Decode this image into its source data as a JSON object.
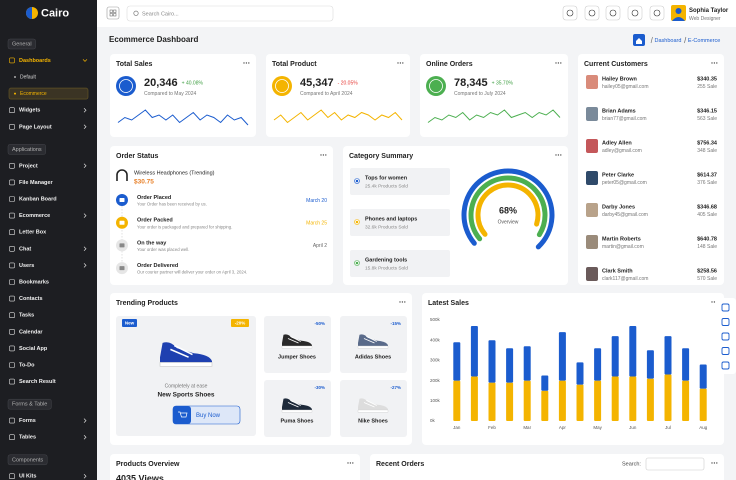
{
  "sidebar": {
    "brand": "Cairo",
    "sections": [
      {
        "title": "General",
        "items": [
          {
            "label": "Dashboards",
            "arrow": true
          },
          {
            "label": "Default",
            "sub": true
          },
          {
            "label": "Ecommerce",
            "sub": true
          },
          {
            "label": "Widgets",
            "arrow": true
          },
          {
            "label": "Page Layout",
            "arrow": true
          }
        ]
      },
      {
        "title": "Applications",
        "items": [
          {
            "label": "Project",
            "arrow": true
          },
          {
            "label": "File Manager"
          },
          {
            "label": "Kanban Board"
          },
          {
            "label": "Ecommerce",
            "arrow": true
          },
          {
            "label": "Letter Box"
          },
          {
            "label": "Chat",
            "arrow": true
          },
          {
            "label": "Users",
            "arrow": true
          },
          {
            "label": "Bookmarks"
          },
          {
            "label": "Contacts"
          },
          {
            "label": "Tasks"
          },
          {
            "label": "Calendar"
          },
          {
            "label": "Social App"
          },
          {
            "label": "To-Do"
          },
          {
            "label": "Search Result"
          }
        ]
      },
      {
        "title": "Forms & Table",
        "items": [
          {
            "label": "Forms",
            "arrow": true
          },
          {
            "label": "Tables",
            "arrow": true
          }
        ]
      },
      {
        "title": "Components",
        "items": [
          {
            "label": "UI Kits",
            "arrow": true
          }
        ]
      }
    ]
  },
  "topbar": {
    "search_placeholder": "Search Cairo...",
    "user_name": "Sophia Taylor",
    "user_role": "Web Designer"
  },
  "page": {
    "title": "Ecommerce Dashboard",
    "breadcrumb": [
      "Dashboard",
      "E-Commerce"
    ]
  },
  "stats": [
    {
      "title": "Total Sales",
      "value": "20,346",
      "change": "+ 40.08%",
      "change_color": "#43a047",
      "note": "Compared to May 2024",
      "color": "#1b5cce",
      "trend": [
        3,
        5,
        4,
        6,
        8,
        5,
        6,
        4,
        6,
        3,
        5,
        7,
        4,
        6,
        5,
        3,
        6,
        4,
        5,
        2
      ]
    },
    {
      "title": "Total Product",
      "value": "45,347",
      "change": "- 20.05%",
      "change_color": "#e53935",
      "note": "Compared to April 2024",
      "color": "#f4b400",
      "trend": [
        4,
        6,
        3,
        5,
        7,
        4,
        6,
        8,
        5,
        7,
        4,
        6,
        5,
        7,
        6,
        4,
        6,
        5,
        7,
        4
      ]
    },
    {
      "title": "Online Orders",
      "value": "78,345",
      "change": "+ 35.70%",
      "change_color": "#43a047",
      "note": "Compared to July 2024",
      "color": "#4caf50",
      "trend": [
        3,
        5,
        4,
        6,
        5,
        7,
        4,
        6,
        5,
        7,
        6,
        8,
        5,
        6,
        7,
        5,
        7,
        6,
        8,
        5
      ]
    }
  ],
  "customers": {
    "title": "Current Customers",
    "rows": [
      {
        "name": "Hailey Brown",
        "email": "hailey05@gmail.com",
        "amount": "$340.35",
        "sales": "255 Sale"
      },
      {
        "name": "Brian Adams",
        "email": "brian77@gmail.com",
        "amount": "$346.15",
        "sales": "563 Sale"
      },
      {
        "name": "Adley Allen",
        "email": "adley@gmail.com",
        "amount": "$756.34",
        "sales": "348 Sale"
      },
      {
        "name": "Peter Clarke",
        "email": "peter05@gmail.com",
        "amount": "$614.37",
        "sales": "376 Sale"
      },
      {
        "name": "Darby Jones",
        "email": "darby45@gmail.com",
        "amount": "$346.68",
        "sales": "405 Sale"
      },
      {
        "name": "Martin Roberts",
        "email": "martin@gmail.com",
        "amount": "$640.78",
        "sales": "148 Sale"
      },
      {
        "name": "Clark Smith",
        "email": "clark117@gmail.com",
        "amount": "$258.56",
        "sales": "570 Sale"
      }
    ]
  },
  "order_status": {
    "title": "Order Status",
    "product": "Wireless Headphones (Trending)",
    "price": "$30.75",
    "steps": [
      {
        "title": "Order Placed",
        "text": "Your Order has been received by us.",
        "date": "March 20",
        "color": "#1b5cce"
      },
      {
        "title": "Order Packed",
        "text": "Your order is packaged and prepared for shipping.",
        "date": "March 25",
        "color": "#f4b400"
      },
      {
        "title": "On the way",
        "text": "Your order was placed well.",
        "date": "April 2",
        "color": "#e6e6e6"
      },
      {
        "title": "Order Delivered",
        "text": "Our courier partner will deliver your order on April 3, 2024.",
        "color": "#e6e6e6"
      }
    ]
  },
  "category_summary": {
    "title": "Category Summary",
    "center_value": "68%",
    "center_label": "Overview",
    "items": [
      {
        "name": "Tops for women",
        "sold": "25.4k Products Sold",
        "color": "#1b5cce"
      },
      {
        "name": "Phones and laptops",
        "sold": "32.6k Products Sold",
        "color": "#f4b400"
      },
      {
        "name": "Gardening tools",
        "sold": "15.8k Products Sold",
        "color": "#4caf50"
      }
    ]
  },
  "trending": {
    "title": "Trending Products",
    "featured": {
      "badge": "New",
      "discount": "-20%",
      "tagline": "Completely at ease",
      "name": "New Sports Shoes",
      "button": "Buy Now"
    },
    "products": [
      {
        "discount": "-50%",
        "name": "Jumper Shoes"
      },
      {
        "discount": "-15%",
        "name": "Adidas Shoes"
      },
      {
        "discount": "-30%",
        "name": "Puma Shoes"
      },
      {
        "discount": "-27%",
        "name": "Nike Shoes"
      }
    ]
  },
  "latest_sales": {
    "type": "bar",
    "stacked": true,
    "title": "Latest Sales",
    "categories": [
      "Jan",
      null,
      "Feb",
      null,
      "Mar",
      null,
      "Apr",
      null,
      "May",
      null,
      "Jun",
      null,
      "Jul",
      null,
      "Aug"
    ],
    "series": [
      {
        "color": "#f4b400",
        "values": [
          200,
          220,
          190,
          190,
          200,
          150,
          200,
          180,
          200,
          220,
          220,
          210,
          230,
          200,
          160
        ]
      },
      {
        "color": "#1b5cce",
        "values": [
          190,
          250,
          210,
          170,
          170,
          75,
          240,
          110,
          160,
          200,
          250,
          140,
          190,
          160,
          120
        ]
      }
    ],
    "ylim": [
      0,
      500
    ],
    "yticks": [
      {
        "value": 0,
        "label": "0k"
      },
      {
        "value": 100,
        "label": "100k"
      },
      {
        "value": 200,
        "label": "200k"
      },
      {
        "value": 300,
        "label": "300k"
      },
      {
        "value": 400,
        "label": "400k"
      },
      {
        "value": 500,
        "label": "500k"
      }
    ]
  },
  "products_overview": {
    "title": "Products Overview",
    "views": "4035 Views"
  },
  "recent_orders": {
    "title": "Recent Orders",
    "search_label": "Search:"
  }
}
